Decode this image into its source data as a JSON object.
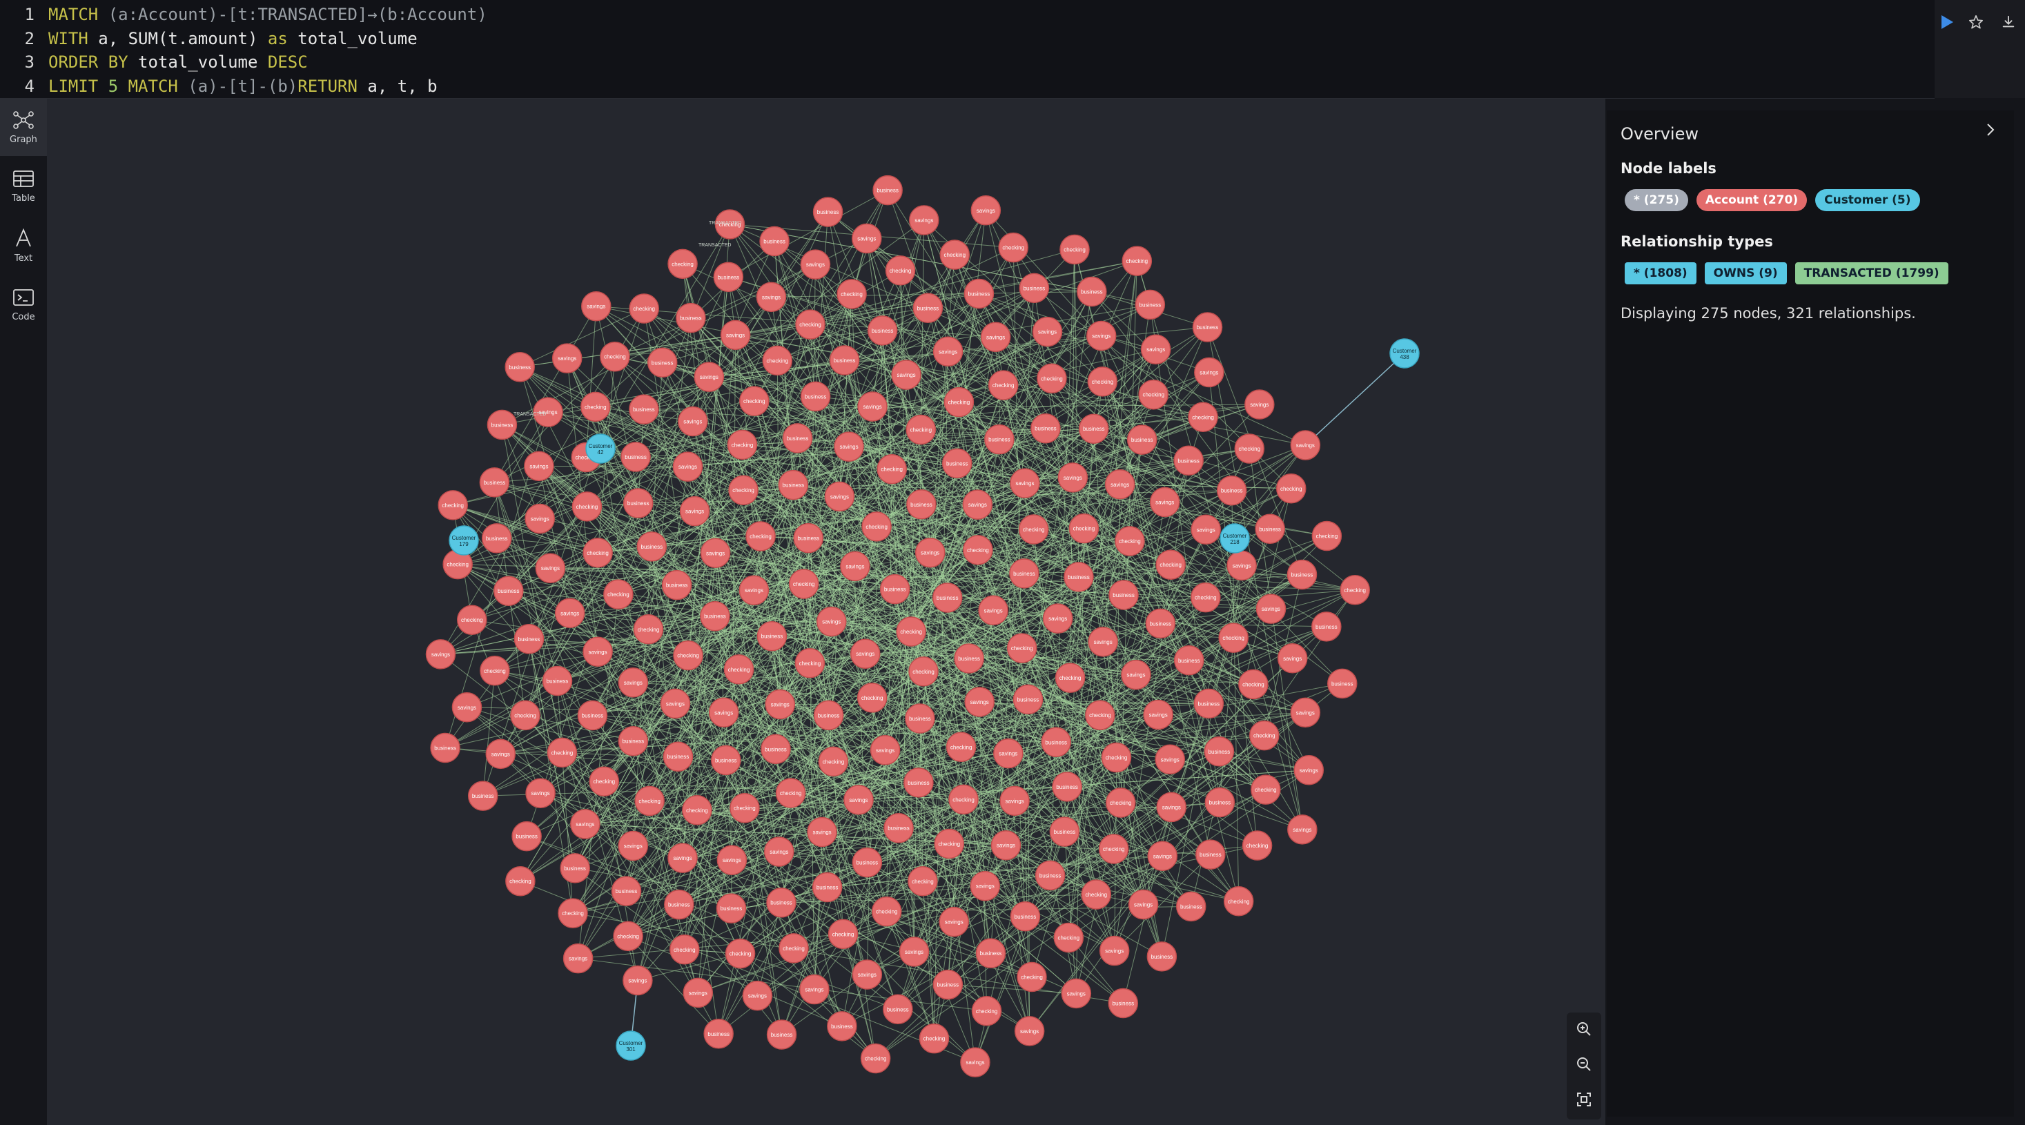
{
  "editor": {
    "lines": [
      {
        "num": "1",
        "tokens": [
          [
            "kw",
            "MATCH"
          ],
          [
            "op",
            " (a:Account)-[t:TRANSACTED]→(b:Account)"
          ]
        ]
      },
      {
        "num": "2",
        "tokens": [
          [
            "kw",
            "WITH"
          ],
          [
            "id",
            " a, SUM(t.amount) "
          ],
          [
            "kw",
            "as"
          ],
          [
            "id",
            " total_volume"
          ]
        ]
      },
      {
        "num": "3",
        "tokens": [
          [
            "kw",
            "ORDER BY"
          ],
          [
            "id",
            " total_volume "
          ],
          [
            "kw",
            "DESC"
          ]
        ]
      },
      {
        "num": "4",
        "tokens": [
          [
            "kw",
            "LIMIT"
          ],
          [
            "num",
            " 5 "
          ],
          [
            "kw",
            "MATCH"
          ],
          [
            "op",
            " (a)-[t]-(b)"
          ],
          [
            "kw",
            "RETURN"
          ],
          [
            "id",
            " a, t, b"
          ]
        ]
      }
    ]
  },
  "toolbar": {
    "run_icon": "play-icon",
    "favorite_icon": "star-icon",
    "download_icon": "download-icon"
  },
  "sidebar": {
    "items": [
      {
        "label": "Graph",
        "icon": "graph-icon"
      },
      {
        "label": "Table",
        "icon": "table-icon"
      },
      {
        "label": "Text",
        "icon": "text-icon"
      },
      {
        "label": "Code",
        "icon": "code-icon"
      }
    ]
  },
  "overview": {
    "title": "Overview",
    "node_labels_heading": "Node labels",
    "node_labels": [
      {
        "text": "* (275)",
        "color": "#a5abb6"
      },
      {
        "text": "Account (270)",
        "color": "#e36b6b"
      },
      {
        "text": "Customer (5)",
        "color": "#57c7e3"
      }
    ],
    "rel_types_heading": "Relationship types",
    "rel_types": [
      {
        "text": "* (1808)",
        "color": "#57c7e3"
      },
      {
        "text": "OWNS (9)",
        "color": "#57c7e3"
      },
      {
        "text": "TRANSACTED (1799)",
        "color": "#8dcc93"
      }
    ],
    "status": "Displaying 275 nodes, 321 relationships."
  },
  "graph": {
    "account_types": [
      "checking",
      "savings",
      "business"
    ],
    "customers": [
      {
        "line1": "Customer",
        "line2": "438"
      },
      {
        "line1": "Customer",
        "line2": "42"
      },
      {
        "line1": "Customer",
        "line2": "179"
      },
      {
        "line1": "Customer",
        "line2": "218"
      },
      {
        "line1": "Customer",
        "line2": "301"
      }
    ],
    "edge_label": "TRANSACTED",
    "owns_label": "OWNS",
    "colors": {
      "account": "#e36b6b",
      "customer": "#57c7e3",
      "edge": "#a9d8a0",
      "owns_edge": "#8ab8c9"
    }
  },
  "zoom": {
    "in_icon": "zoom-in-icon",
    "out_icon": "zoom-out-icon",
    "fit_icon": "fit-icon"
  }
}
